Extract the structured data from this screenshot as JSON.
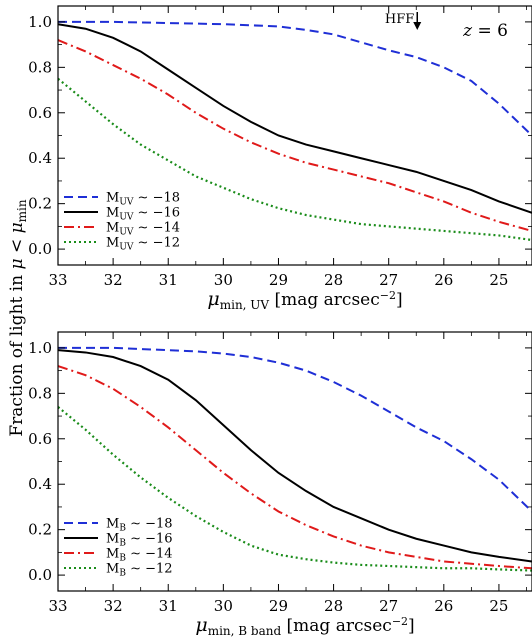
{
  "shared_ylabel": "Fraction of light in μ < μmin",
  "chart_data": [
    {
      "type": "line",
      "xlabel": "μmin, UV [mag arcsec−2]",
      "ylabel": "Fraction of light in μ < μmin",
      "xlim": [
        33,
        24.4
      ],
      "ylim": [
        -0.07,
        1.07
      ],
      "x_inverted": true,
      "xticks": [
        33,
        32,
        31,
        30,
        29,
        28,
        27,
        26,
        25
      ],
      "yticks": [
        0.0,
        0.2,
        0.4,
        0.6,
        0.8,
        1.0
      ],
      "legend_position": "lower-left",
      "annotations": [
        {
          "text": "HFF",
          "x": 26.5,
          "y": 1.0,
          "arrow": "down"
        },
        {
          "text": "z = 6",
          "position": "top-right"
        }
      ],
      "series": [
        {
          "name": "MUV ∼ −18",
          "color": "#1f2fd6",
          "dash": "dashed",
          "x": [
            33,
            32,
            31,
            30,
            29.5,
            29,
            28.5,
            28,
            27.5,
            27,
            26.5,
            26,
            25.5,
            25,
            24.4
          ],
          "y": [
            1.0,
            1.0,
            0.995,
            0.99,
            0.985,
            0.98,
            0.965,
            0.945,
            0.91,
            0.875,
            0.845,
            0.8,
            0.74,
            0.64,
            0.5
          ]
        },
        {
          "name": "MUV ∼ −16",
          "color": "#000000",
          "dash": "solid",
          "x": [
            33,
            32.5,
            32,
            31.5,
            31,
            30.5,
            30,
            29.5,
            29,
            28.5,
            28,
            27.5,
            27,
            26.5,
            26,
            25.5,
            25,
            24.4
          ],
          "y": [
            0.99,
            0.97,
            0.93,
            0.87,
            0.79,
            0.71,
            0.63,
            0.56,
            0.5,
            0.46,
            0.43,
            0.4,
            0.37,
            0.34,
            0.3,
            0.26,
            0.21,
            0.16
          ]
        },
        {
          "name": "MUV ∼ −14",
          "color": "#e01a1a",
          "dash": "dashdot",
          "x": [
            33,
            32.5,
            32,
            31.5,
            31,
            30.5,
            30,
            29.5,
            29,
            28.5,
            28,
            27.5,
            27,
            26.5,
            26,
            25.5,
            25,
            24.4
          ],
          "y": [
            0.92,
            0.87,
            0.81,
            0.75,
            0.68,
            0.6,
            0.53,
            0.47,
            0.42,
            0.38,
            0.35,
            0.32,
            0.29,
            0.25,
            0.21,
            0.16,
            0.12,
            0.08
          ]
        },
        {
          "name": "MUV ∼ −12",
          "color": "#1a8c1a",
          "dash": "dotted",
          "x": [
            33,
            32.5,
            32,
            31.5,
            31,
            30.5,
            30,
            29.5,
            29,
            28.5,
            28,
            27.5,
            27,
            26.5,
            26,
            25.5,
            25,
            24.4
          ],
          "y": [
            0.75,
            0.65,
            0.55,
            0.46,
            0.39,
            0.32,
            0.27,
            0.22,
            0.18,
            0.15,
            0.13,
            0.11,
            0.1,
            0.09,
            0.08,
            0.07,
            0.06,
            0.04
          ]
        }
      ]
    },
    {
      "type": "line",
      "xlabel": "μmin, B band [mag arcsec−2]",
      "ylabel": "Fraction of light in μ < μmin",
      "xlim": [
        33,
        24.4
      ],
      "ylim": [
        -0.07,
        1.07
      ],
      "x_inverted": true,
      "xticks": [
        33,
        32,
        31,
        30,
        29,
        28,
        27,
        26,
        25
      ],
      "yticks": [
        0.0,
        0.2,
        0.4,
        0.6,
        0.8,
        1.0
      ],
      "legend_position": "lower-left",
      "series": [
        {
          "name": "MB ∼ −18",
          "color": "#1f2fd6",
          "dash": "dashed",
          "x": [
            33,
            32,
            31,
            30.5,
            30,
            29.5,
            29,
            28.5,
            28,
            27.5,
            27,
            26.5,
            26,
            25.5,
            25,
            24.4
          ],
          "y": [
            1.0,
            1.0,
            0.99,
            0.985,
            0.975,
            0.96,
            0.935,
            0.9,
            0.85,
            0.79,
            0.72,
            0.65,
            0.59,
            0.51,
            0.42,
            0.28
          ]
        },
        {
          "name": "MB ∼ −16",
          "color": "#000000",
          "dash": "solid",
          "x": [
            33,
            32.5,
            32,
            31.5,
            31,
            30.5,
            30,
            29.5,
            29,
            28.5,
            28,
            27.5,
            27,
            26.5,
            26,
            25.5,
            25,
            24.4
          ],
          "y": [
            0.99,
            0.98,
            0.96,
            0.92,
            0.86,
            0.77,
            0.66,
            0.55,
            0.45,
            0.37,
            0.3,
            0.25,
            0.2,
            0.16,
            0.13,
            0.1,
            0.08,
            0.06
          ]
        },
        {
          "name": "MB ∼ −14",
          "color": "#e01a1a",
          "dash": "dashdot",
          "x": [
            33,
            32.5,
            32,
            31.5,
            31,
            30.5,
            30,
            29.5,
            29,
            28.5,
            28,
            27.5,
            27,
            26.5,
            26,
            25.5,
            25,
            24.4
          ],
          "y": [
            0.92,
            0.88,
            0.82,
            0.74,
            0.65,
            0.55,
            0.45,
            0.36,
            0.28,
            0.22,
            0.17,
            0.13,
            0.1,
            0.08,
            0.06,
            0.05,
            0.04,
            0.03
          ]
        },
        {
          "name": "MB ∼ −12",
          "color": "#1a8c1a",
          "dash": "dotted",
          "x": [
            33,
            32.5,
            32,
            31.5,
            31,
            30.5,
            30,
            29.5,
            29,
            28.5,
            28,
            27.5,
            27,
            26.5,
            26,
            25.5,
            25,
            24.4
          ],
          "y": [
            0.74,
            0.64,
            0.53,
            0.43,
            0.34,
            0.26,
            0.19,
            0.13,
            0.09,
            0.07,
            0.055,
            0.045,
            0.04,
            0.035,
            0.03,
            0.03,
            0.025,
            0.02
          ]
        }
      ]
    }
  ]
}
